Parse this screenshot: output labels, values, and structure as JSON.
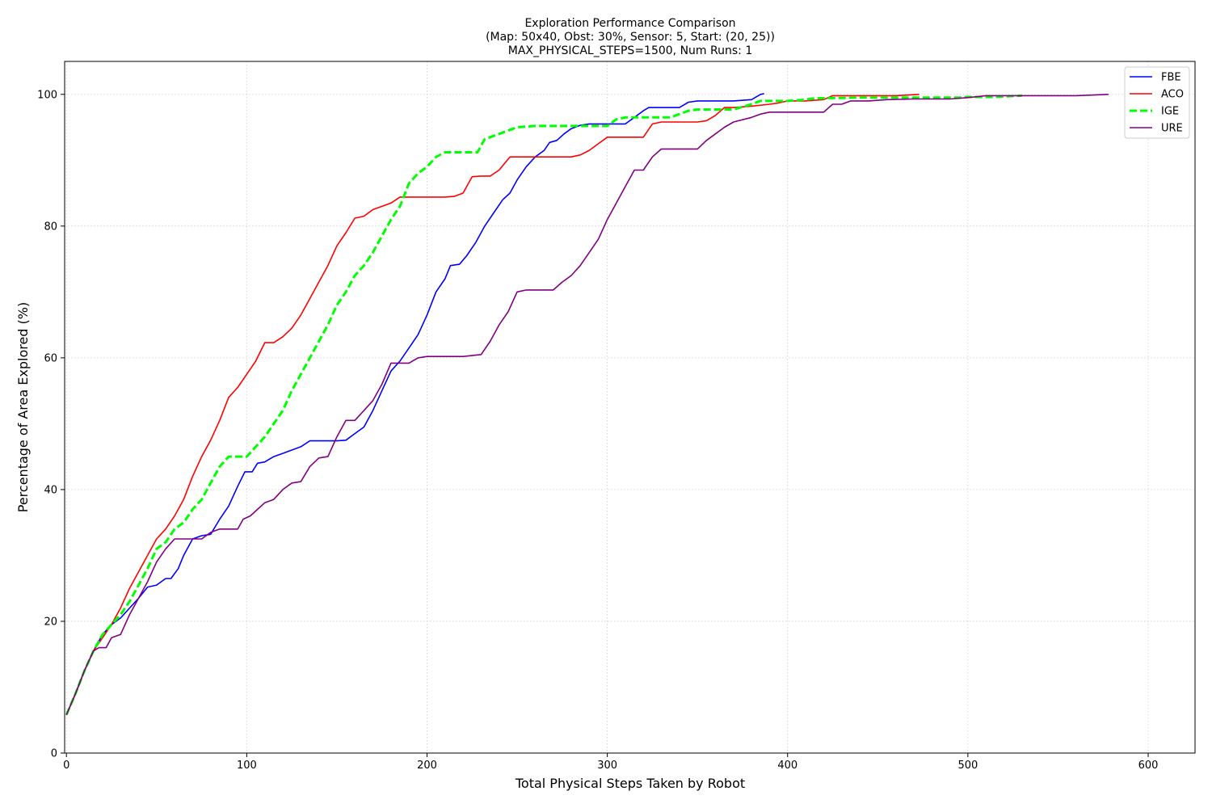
{
  "chart_data": {
    "type": "line",
    "title_lines": [
      "Exploration Performance Comparison",
      "(Map: 50x40, Obst: 30%, Sensor: 5, Start: (20, 25))",
      "MAX_PHYSICAL_STEPS=1500, Num Runs: 1"
    ],
    "xlabel": "Total Physical Steps Taken by Robot",
    "ylabel": "Percentage of Area Explored (%)",
    "xlim": [
      -1,
      626
    ],
    "ylim": [
      0,
      105
    ],
    "xticks": [
      0,
      100,
      200,
      300,
      400,
      500,
      600
    ],
    "yticks": [
      0,
      20,
      40,
      60,
      80,
      100
    ],
    "grid": true,
    "legend_position": "top-right",
    "series": [
      {
        "name": "FBE",
        "color": "#0000ff",
        "dashed": false,
        "points": [
          [
            0,
            5.8
          ],
          [
            5,
            9
          ],
          [
            10,
            12.5
          ],
          [
            15,
            15.5
          ],
          [
            20,
            18
          ],
          [
            25,
            19.5
          ],
          [
            30,
            20.5
          ],
          [
            35,
            22
          ],
          [
            40,
            23.5
          ],
          [
            45,
            25.2
          ],
          [
            50,
            25.5
          ],
          [
            55,
            26.5
          ],
          [
            58,
            26.5
          ],
          [
            62,
            28
          ],
          [
            65,
            30
          ],
          [
            70,
            32.5
          ],
          [
            75,
            33
          ],
          [
            80,
            33.2
          ],
          [
            85,
            35.5
          ],
          [
            90,
            37.5
          ],
          [
            95,
            40.5
          ],
          [
            99,
            42.7
          ],
          [
            103,
            42.7
          ],
          [
            106,
            44
          ],
          [
            110,
            44.2
          ],
          [
            115,
            45
          ],
          [
            120,
            45.5
          ],
          [
            125,
            46
          ],
          [
            130,
            46.5
          ],
          [
            135,
            47.4
          ],
          [
            140,
            47.4
          ],
          [
            145,
            47.4
          ],
          [
            150,
            47.4
          ],
          [
            155,
            47.5
          ],
          [
            160,
            48.5
          ],
          [
            165,
            49.5
          ],
          [
            170,
            52
          ],
          [
            175,
            55
          ],
          [
            180,
            58
          ],
          [
            185,
            59.5
          ],
          [
            190,
            61.5
          ],
          [
            195,
            63.5
          ],
          [
            200,
            66.5
          ],
          [
            205,
            70
          ],
          [
            210,
            72
          ],
          [
            213,
            74
          ],
          [
            218,
            74.2
          ],
          [
            222,
            75.5
          ],
          [
            227,
            77.5
          ],
          [
            232,
            80
          ],
          [
            237,
            82
          ],
          [
            242,
            84
          ],
          [
            246,
            85
          ],
          [
            250,
            87
          ],
          [
            255,
            89
          ],
          [
            260,
            90.5
          ],
          [
            265,
            91.5
          ],
          [
            268,
            92.7
          ],
          [
            272,
            93
          ],
          [
            276,
            94
          ],
          [
            280,
            94.8
          ],
          [
            285,
            95.3
          ],
          [
            290,
            95.5
          ],
          [
            300,
            95.5
          ],
          [
            310,
            95.5
          ],
          [
            315,
            96.5
          ],
          [
            320,
            97.5
          ],
          [
            323,
            98
          ],
          [
            330,
            98
          ],
          [
            340,
            98
          ],
          [
            345,
            98.8
          ],
          [
            350,
            99
          ],
          [
            360,
            99
          ],
          [
            370,
            99
          ],
          [
            380,
            99.2
          ],
          [
            385,
            100
          ],
          [
            387,
            100.1
          ]
        ]
      },
      {
        "name": "ACO",
        "color": "#ff0000",
        "dashed": false,
        "points": [
          [
            0,
            5.8
          ],
          [
            5,
            9
          ],
          [
            10,
            12.5
          ],
          [
            15,
            15.5
          ],
          [
            20,
            17.5
          ],
          [
            25,
            19.5
          ],
          [
            30,
            22
          ],
          [
            35,
            25
          ],
          [
            40,
            27.5
          ],
          [
            45,
            30
          ],
          [
            50,
            32.5
          ],
          [
            55,
            34
          ],
          [
            60,
            36
          ],
          [
            65,
            38.5
          ],
          [
            70,
            42
          ],
          [
            75,
            45
          ],
          [
            80,
            47.5
          ],
          [
            85,
            50.5
          ],
          [
            90,
            54
          ],
          [
            95,
            55.5
          ],
          [
            100,
            57.5
          ],
          [
            105,
            59.5
          ],
          [
            110,
            62.3
          ],
          [
            115,
            62.3
          ],
          [
            120,
            63.2
          ],
          [
            125,
            64.5
          ],
          [
            130,
            66.5
          ],
          [
            135,
            69
          ],
          [
            140,
            71.5
          ],
          [
            145,
            74
          ],
          [
            150,
            77
          ],
          [
            155,
            79
          ],
          [
            160,
            81.2
          ],
          [
            165,
            81.5
          ],
          [
            170,
            82.5
          ],
          [
            175,
            83
          ],
          [
            180,
            83.5
          ],
          [
            185,
            84.4
          ],
          [
            190,
            84.4
          ],
          [
            200,
            84.4
          ],
          [
            210,
            84.4
          ],
          [
            215,
            84.5
          ],
          [
            220,
            85
          ],
          [
            225,
            87.5
          ],
          [
            230,
            87.6
          ],
          [
            235,
            87.6
          ],
          [
            240,
            88.5
          ],
          [
            246,
            90.5
          ],
          [
            250,
            90.5
          ],
          [
            260,
            90.5
          ],
          [
            270,
            90.5
          ],
          [
            280,
            90.5
          ],
          [
            285,
            90.8
          ],
          [
            290,
            91.5
          ],
          [
            295,
            92.5
          ],
          [
            300,
            93.5
          ],
          [
            310,
            93.5
          ],
          [
            320,
            93.5
          ],
          [
            325,
            95.5
          ],
          [
            330,
            95.8
          ],
          [
            340,
            95.8
          ],
          [
            350,
            95.8
          ],
          [
            355,
            96
          ],
          [
            360,
            96.8
          ],
          [
            365,
            98
          ],
          [
            370,
            98
          ],
          [
            380,
            98.2
          ],
          [
            390,
            98.5
          ],
          [
            395,
            98.7
          ],
          [
            400,
            99
          ],
          [
            410,
            99
          ],
          [
            420,
            99.2
          ],
          [
            425,
            99.8
          ],
          [
            440,
            99.8
          ],
          [
            460,
            99.8
          ],
          [
            473,
            100
          ]
        ]
      },
      {
        "name": "IGE",
        "color": "#00ff00",
        "dashed": true,
        "points": [
          [
            0,
            5.8
          ],
          [
            5,
            9
          ],
          [
            10,
            12.5
          ],
          [
            15,
            15.5
          ],
          [
            20,
            18
          ],
          [
            25,
            19.5
          ],
          [
            30,
            21
          ],
          [
            35,
            23
          ],
          [
            40,
            25.5
          ],
          [
            45,
            28
          ],
          [
            50,
            31
          ],
          [
            55,
            32
          ],
          [
            60,
            34
          ],
          [
            65,
            35
          ],
          [
            70,
            37
          ],
          [
            75,
            38.5
          ],
          [
            80,
            41
          ],
          [
            85,
            43.5
          ],
          [
            90,
            45
          ],
          [
            95,
            45
          ],
          [
            100,
            45
          ],
          [
            105,
            46.5
          ],
          [
            110,
            48
          ],
          [
            115,
            50
          ],
          [
            120,
            52
          ],
          [
            125,
            55
          ],
          [
            130,
            57.5
          ],
          [
            135,
            60
          ],
          [
            140,
            62.5
          ],
          [
            145,
            65
          ],
          [
            150,
            68
          ],
          [
            155,
            70
          ],
          [
            160,
            72.5
          ],
          [
            165,
            74
          ],
          [
            170,
            76
          ],
          [
            175,
            78.5
          ],
          [
            180,
            81
          ],
          [
            185,
            83
          ],
          [
            190,
            86.5
          ],
          [
            195,
            88
          ],
          [
            200,
            89
          ],
          [
            205,
            90.5
          ],
          [
            210,
            91.2
          ],
          [
            220,
            91.2
          ],
          [
            228,
            91.2
          ],
          [
            232,
            93.2
          ],
          [
            240,
            94
          ],
          [
            250,
            95
          ],
          [
            260,
            95.2
          ],
          [
            270,
            95.2
          ],
          [
            280,
            95.2
          ],
          [
            290,
            95.2
          ],
          [
            300,
            95.2
          ],
          [
            305,
            96.2
          ],
          [
            310,
            96.5
          ],
          [
            320,
            96.5
          ],
          [
            335,
            96.5
          ],
          [
            340,
            97
          ],
          [
            345,
            97.5
          ],
          [
            350,
            97.7
          ],
          [
            360,
            97.7
          ],
          [
            370,
            97.7
          ],
          [
            380,
            98.5
          ],
          [
            385,
            99
          ],
          [
            400,
            99
          ],
          [
            410,
            99.2
          ],
          [
            415,
            99.4
          ],
          [
            440,
            99.5
          ],
          [
            470,
            99.5
          ],
          [
            495,
            99.5
          ],
          [
            500,
            99.6
          ],
          [
            515,
            99.6
          ],
          [
            530,
            99.8
          ]
        ]
      },
      {
        "name": "URE",
        "color": "#800080",
        "dashed": false,
        "points": [
          [
            0,
            5.8
          ],
          [
            5,
            9
          ],
          [
            10,
            12.5
          ],
          [
            15,
            15.5
          ],
          [
            18,
            16
          ],
          [
            20,
            16
          ],
          [
            22,
            16
          ],
          [
            25,
            17.5
          ],
          [
            30,
            18
          ],
          [
            35,
            21
          ],
          [
            40,
            23.5
          ],
          [
            45,
            26
          ],
          [
            50,
            29
          ],
          [
            55,
            31
          ],
          [
            60,
            32.5
          ],
          [
            65,
            32.5
          ],
          [
            70,
            32.5
          ],
          [
            75,
            32.5
          ],
          [
            80,
            33.5
          ],
          [
            85,
            34
          ],
          [
            90,
            34
          ],
          [
            95,
            34
          ],
          [
            98,
            35.5
          ],
          [
            102,
            36
          ],
          [
            106,
            37
          ],
          [
            110,
            38
          ],
          [
            115,
            38.5
          ],
          [
            120,
            40
          ],
          [
            125,
            41
          ],
          [
            130,
            41.2
          ],
          [
            135,
            43.5
          ],
          [
            140,
            44.8
          ],
          [
            145,
            45
          ],
          [
            150,
            48
          ],
          [
            155,
            50.5
          ],
          [
            160,
            50.5
          ],
          [
            165,
            52
          ],
          [
            170,
            53.5
          ],
          [
            175,
            56
          ],
          [
            180,
            59.2
          ],
          [
            185,
            59.2
          ],
          [
            190,
            59.2
          ],
          [
            195,
            60
          ],
          [
            200,
            60.2
          ],
          [
            210,
            60.2
          ],
          [
            220,
            60.2
          ],
          [
            230,
            60.5
          ],
          [
            235,
            62.5
          ],
          [
            240,
            65
          ],
          [
            245,
            67
          ],
          [
            250,
            70
          ],
          [
            255,
            70.3
          ],
          [
            260,
            70.3
          ],
          [
            270,
            70.3
          ],
          [
            275,
            71.5
          ],
          [
            280,
            72.5
          ],
          [
            285,
            74
          ],
          [
            290,
            76
          ],
          [
            295,
            78
          ],
          [
            300,
            81
          ],
          [
            305,
            83.5
          ],
          [
            310,
            86
          ],
          [
            315,
            88.5
          ],
          [
            320,
            88.5
          ],
          [
            325,
            90.5
          ],
          [
            330,
            91.7
          ],
          [
            340,
            91.7
          ],
          [
            350,
            91.7
          ],
          [
            355,
            93
          ],
          [
            360,
            94
          ],
          [
            365,
            95
          ],
          [
            370,
            95.8
          ],
          [
            380,
            96.5
          ],
          [
            385,
            97
          ],
          [
            390,
            97.3
          ],
          [
            400,
            97.3
          ],
          [
            410,
            97.3
          ],
          [
            420,
            97.3
          ],
          [
            425,
            98.5
          ],
          [
            430,
            98.5
          ],
          [
            435,
            99
          ],
          [
            445,
            99
          ],
          [
            455,
            99.2
          ],
          [
            470,
            99.3
          ],
          [
            490,
            99.3
          ],
          [
            500,
            99.5
          ],
          [
            510,
            99.8
          ],
          [
            540,
            99.8
          ],
          [
            560,
            99.8
          ],
          [
            578,
            100
          ]
        ]
      }
    ]
  }
}
